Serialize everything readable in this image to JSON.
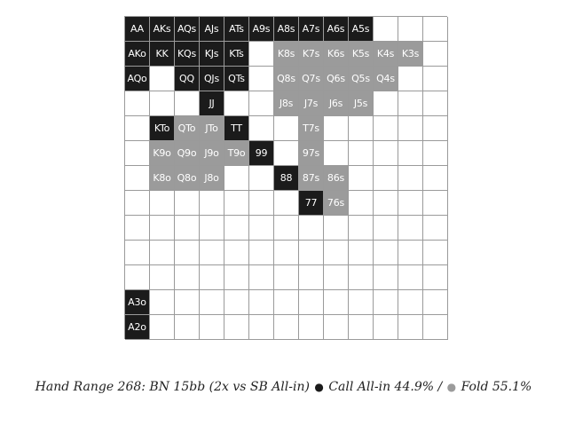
{
  "colors": {
    "allin": "#1b1b1b",
    "call": "#9b9b9b",
    "empty": "#ffffff",
    "grid_line": "#9a9a9a"
  },
  "grid": {
    "rows": [
      [
        "AA",
        "AKs",
        "AQs",
        "AJs",
        "ATs",
        "A9s",
        "A8s",
        "A7s",
        "A6s",
        "A5s",
        "",
        "",
        ""
      ],
      [
        "AKo",
        "KK",
        "KQs",
        "KJs",
        "KTs",
        "",
        "K8s",
        "K7s",
        "K6s",
        "K5s",
        "K4s",
        "K3s",
        ""
      ],
      [
        "AQo",
        "",
        "QQ",
        "QJs",
        "QTs",
        "",
        "Q8s",
        "Q7s",
        "Q6s",
        "Q5s",
        "Q4s",
        "",
        ""
      ],
      [
        "",
        "",
        "",
        "JJ",
        "",
        "",
        "J8s",
        "J7s",
        "J6s",
        "J5s",
        "",
        "",
        ""
      ],
      [
        "",
        "KTo",
        "QTo",
        "JTo",
        "TT",
        "",
        "",
        "T7s",
        "",
        "",
        "",
        "",
        ""
      ],
      [
        "",
        "K9o",
        "Q9o",
        "J9o",
        "T9o",
        "99",
        "",
        "97s",
        "",
        "",
        "",
        "",
        ""
      ],
      [
        "",
        "K8o",
        "Q8o",
        "J8o",
        "",
        "",
        "88",
        "87s",
        "86s",
        "",
        "",
        "",
        ""
      ],
      [
        "",
        "",
        "",
        "",
        "",
        "",
        "",
        "77",
        "76s",
        "",
        "",
        "",
        ""
      ],
      [
        "",
        "",
        "",
        "",
        "",
        "",
        "",
        "",
        "",
        "",
        "",
        "",
        ""
      ],
      [
        "",
        "",
        "",
        "",
        "",
        "",
        "",
        "",
        "",
        "",
        "",
        "",
        ""
      ],
      [
        "",
        "",
        "",
        "",
        "",
        "",
        "",
        "",
        "",
        "",
        "",
        "",
        ""
      ],
      [
        "A3o",
        "",
        "",
        "",
        "",
        "",
        "",
        "",
        "",
        "",
        "",
        "",
        ""
      ],
      [
        "A2o",
        "",
        "",
        "",
        "",
        "",
        "",
        "",
        "",
        "",
        "",
        "",
        ""
      ]
    ],
    "states": [
      [
        "allin",
        "allin",
        "allin",
        "allin",
        "allin",
        "allin",
        "allin",
        "allin",
        "allin",
        "allin",
        "empty",
        "empty",
        "empty"
      ],
      [
        "allin",
        "allin",
        "allin",
        "allin",
        "allin",
        "empty",
        "call",
        "call",
        "call",
        "call",
        "call",
        "call",
        "empty"
      ],
      [
        "allin",
        "empty",
        "allin",
        "allin",
        "allin",
        "empty",
        "call",
        "call",
        "call",
        "call",
        "call",
        "empty",
        "empty"
      ],
      [
        "empty",
        "empty",
        "empty",
        "allin",
        "empty",
        "empty",
        "call",
        "call",
        "call",
        "call",
        "empty",
        "empty",
        "empty"
      ],
      [
        "empty",
        "allin",
        "call",
        "call",
        "allin",
        "empty",
        "empty",
        "call",
        "empty",
        "empty",
        "empty",
        "empty",
        "empty"
      ],
      [
        "empty",
        "call",
        "call",
        "call",
        "call",
        "allin",
        "empty",
        "call",
        "empty",
        "empty",
        "empty",
        "empty",
        "empty"
      ],
      [
        "empty",
        "call",
        "call",
        "call",
        "empty",
        "empty",
        "allin",
        "call",
        "call",
        "empty",
        "empty",
        "empty",
        "empty"
      ],
      [
        "empty",
        "empty",
        "empty",
        "empty",
        "empty",
        "empty",
        "empty",
        "allin",
        "call",
        "empty",
        "empty",
        "empty",
        "empty"
      ],
      [
        "empty",
        "empty",
        "empty",
        "empty",
        "empty",
        "empty",
        "empty",
        "empty",
        "empty",
        "empty",
        "empty",
        "empty",
        "empty"
      ],
      [
        "empty",
        "empty",
        "empty",
        "empty",
        "empty",
        "empty",
        "empty",
        "empty",
        "empty",
        "empty",
        "empty",
        "empty",
        "empty"
      ],
      [
        "empty",
        "empty",
        "empty",
        "empty",
        "empty",
        "empty",
        "empty",
        "empty",
        "empty",
        "empty",
        "empty",
        "empty",
        "empty"
      ],
      [
        "allin",
        "empty",
        "empty",
        "empty",
        "empty",
        "empty",
        "empty",
        "empty",
        "empty",
        "empty",
        "empty",
        "empty",
        "empty"
      ],
      [
        "allin",
        "empty",
        "empty",
        "empty",
        "empty",
        "empty",
        "empty",
        "empty",
        "empty",
        "empty",
        "empty",
        "empty",
        "empty"
      ]
    ]
  },
  "caption": {
    "prefix": "Hand Range 268: BN 15bb (2x vs SB All-in)",
    "dot_allin": "●",
    "label_allin": "Call All-in 44.9%",
    "separator": "/",
    "dot_fold": "●",
    "label_fold": "Fold 55.1%"
  }
}
